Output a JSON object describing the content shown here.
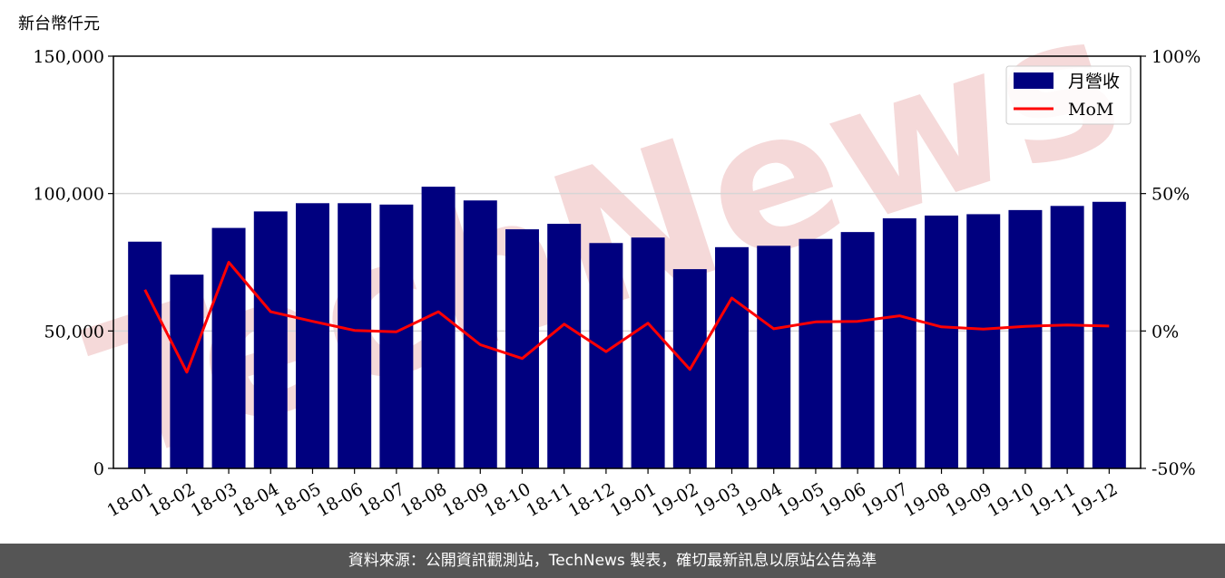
{
  "chart_data": {
    "type": "bar",
    "unit_label": "新台幣仟元",
    "categories": [
      "18-01",
      "18-02",
      "18-03",
      "18-04",
      "18-05",
      "18-06",
      "18-07",
      "18-08",
      "18-09",
      "18-10",
      "18-11",
      "18-12",
      "19-01",
      "19-02",
      "19-03",
      "19-04",
      "19-05",
      "19-06",
      "19-07",
      "19-08",
      "19-09",
      "19-10",
      "19-11",
      "19-12"
    ],
    "series": [
      {
        "name": "月營收",
        "kind": "bar",
        "axis": "left",
        "color": "#00007f",
        "values": [
          82500,
          70500,
          87500,
          93500,
          96500,
          96500,
          96000,
          102500,
          97500,
          87000,
          89000,
          82000,
          84000,
          72500,
          80500,
          81000,
          83500,
          86000,
          91000,
          92000,
          92500,
          94000,
          95500,
          97000
        ]
      },
      {
        "name": "MoM",
        "kind": "line",
        "axis": "right",
        "color": "#ff0000",
        "values": [
          15,
          -15,
          25,
          7,
          3.5,
          0.2,
          -0.3,
          7,
          -5,
          -10,
          2.5,
          -7.5,
          2.8,
          -14,
          12,
          0.8,
          3.3,
          3.5,
          5.5,
          1.5,
          0.7,
          1.7,
          2.2,
          1.8
        ]
      }
    ],
    "y_left": {
      "ticks": [
        "0",
        "50,000",
        "100,000",
        "150,000"
      ],
      "tick_values": [
        0,
        50000,
        100000,
        150000
      ],
      "lim": [
        0,
        150000
      ]
    },
    "y_right": {
      "ticks": [
        "-50%",
        "0%",
        "50%",
        "100%"
      ],
      "tick_values": [
        -50,
        0,
        50,
        100
      ],
      "lim": [
        -50,
        100
      ]
    },
    "grid": "horizontal",
    "legend_placement": "top-right"
  },
  "footer": {
    "text": "資料來源：公開資訊觀測站，TechNews 製表，確切最新訊息以原站公告為準"
  },
  "watermark": {
    "text": "TechNews",
    "color": "#f5d9d9"
  }
}
